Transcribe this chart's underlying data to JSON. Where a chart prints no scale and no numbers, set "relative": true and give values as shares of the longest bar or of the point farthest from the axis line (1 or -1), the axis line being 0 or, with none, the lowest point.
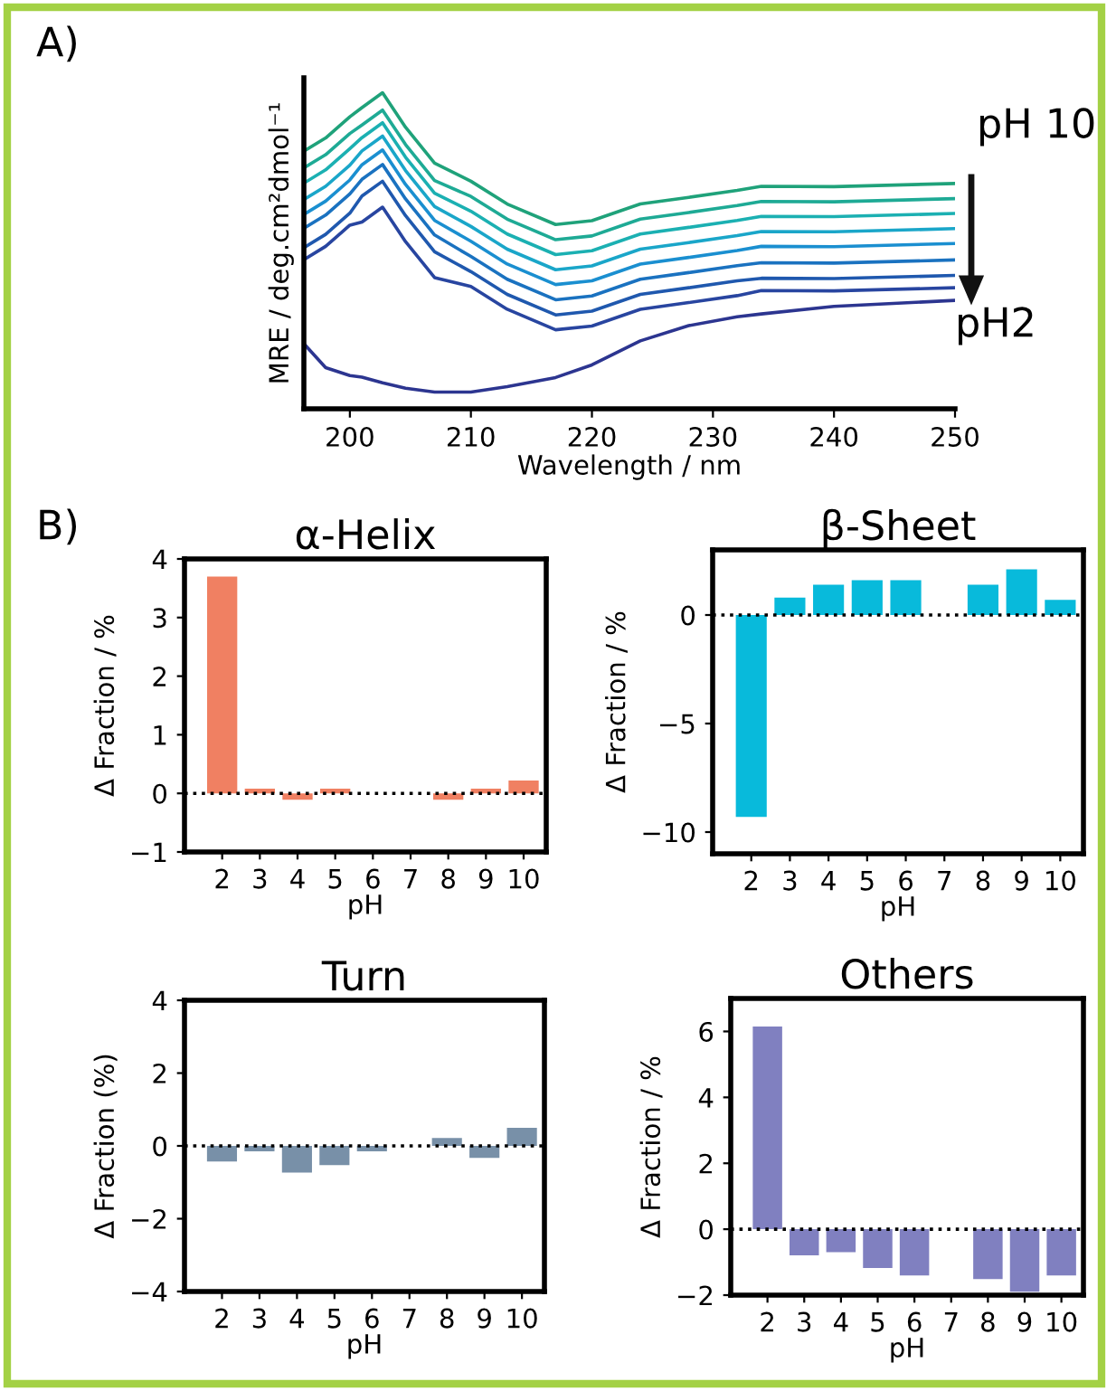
{
  "chart_data": [
    {
      "type": "line",
      "relative": true,
      "xlabel": "Wavelength / nm",
      "ylabel": "MRE / deg.cm²dmol⁻¹",
      "xlim": [
        196.2,
        250
      ],
      "xticks": [
        200,
        210,
        220,
        230,
        240,
        250
      ],
      "annotations": [
        "A)",
        "pH 10",
        "pH2"
      ],
      "x": [
        196.2,
        198,
        200,
        201,
        202.7,
        204.6,
        207,
        210,
        213,
        217,
        220,
        224,
        228,
        232,
        234,
        240,
        250
      ],
      "series": [
        {
          "color": "#1fa27a",
          "values": [
            0.815,
            0.857,
            0.924,
            0.953,
            1.0,
            0.891,
            0.777,
            0.72,
            0.648,
            0.583,
            0.595,
            0.648,
            0.669,
            0.691,
            0.704,
            0.703,
            0.713
          ]
        },
        {
          "color": "#1eaa95",
          "values": [
            0.762,
            0.804,
            0.871,
            0.898,
            0.945,
            0.836,
            0.722,
            0.672,
            0.6,
            0.535,
            0.547,
            0.6,
            0.621,
            0.643,
            0.656,
            0.655,
            0.665
          ]
        },
        {
          "color": "#1bb0b2",
          "values": [
            0.714,
            0.756,
            0.823,
            0.858,
            0.905,
            0.796,
            0.682,
            0.625,
            0.553,
            0.488,
            0.5,
            0.553,
            0.574,
            0.596,
            0.609,
            0.608,
            0.618
          ]
        },
        {
          "color": "#1aa6c9",
          "values": [
            0.662,
            0.704,
            0.771,
            0.816,
            0.863,
            0.754,
            0.64,
            0.577,
            0.505,
            0.44,
            0.452,
            0.505,
            0.526,
            0.548,
            0.561,
            0.56,
            0.57
          ]
        },
        {
          "color": "#1a8fd0",
          "values": [
            0.615,
            0.657,
            0.724,
            0.772,
            0.819,
            0.71,
            0.596,
            0.53,
            0.458,
            0.393,
            0.405,
            0.458,
            0.479,
            0.501,
            0.514,
            0.513,
            0.523
          ]
        },
        {
          "color": "#1a72c0",
          "values": [
            0.571,
            0.613,
            0.68,
            0.726,
            0.773,
            0.664,
            0.55,
            0.482,
            0.41,
            0.345,
            0.357,
            0.41,
            0.431,
            0.453,
            0.462,
            0.461,
            0.471
          ]
        },
        {
          "color": "#1f58ae",
          "values": [
            0.51,
            0.552,
            0.619,
            0.673,
            0.72,
            0.611,
            0.497,
            0.434,
            0.362,
            0.297,
            0.309,
            0.362,
            0.383,
            0.405,
            0.413,
            0.412,
            0.422
          ]
        },
        {
          "color": "#2845a0",
          "values": [
            0.472,
            0.514,
            0.581,
            0.591,
            0.638,
            0.529,
            0.415,
            0.387,
            0.315,
            0.25,
            0.262,
            0.315,
            0.336,
            0.358,
            0.374,
            0.373,
            0.383
          ]
        },
        {
          "color": "#2c3590",
          "values": [
            0.206,
            0.13,
            0.105,
            0.1,
            0.082,
            0.065,
            0.053,
            0.053,
            0.07,
            0.099,
            0.139,
            0.215,
            0.263,
            0.291,
            0.3,
            0.324,
            0.343
          ]
        }
      ]
    },
    {
      "type": "bar",
      "title": "α-Helix",
      "xlabel": "pH",
      "ylabel": "Δ Fraction / %",
      "categories": [
        "2",
        "3",
        "4",
        "5",
        "6",
        "7",
        "8",
        "9",
        "10"
      ],
      "values": [
        3.7,
        0.08,
        -0.11,
        0.08,
        null,
        null,
        -0.11,
        0.08,
        0.22
      ],
      "color": "#f08062",
      "ylim": [
        -1,
        4
      ],
      "yticks": [
        -1,
        0,
        1,
        2,
        3,
        4
      ],
      "ref_lines": [
        {
          "axis": "y",
          "value": 0,
          "line_style": "dotted",
          "color": "#000000"
        }
      ],
      "annotations": [
        "B)"
      ]
    },
    {
      "type": "bar",
      "title": "β-Sheet",
      "xlabel": "pH",
      "ylabel": "Δ Fraction / %",
      "categories": [
        "2",
        "3",
        "4",
        "5",
        "6",
        "7",
        "8",
        "9",
        "10"
      ],
      "values": [
        -9.3,
        0.8,
        1.4,
        1.6,
        1.6,
        null,
        1.4,
        2.1,
        0.7
      ],
      "color": "#08badb",
      "ylim": [
        -11,
        3
      ],
      "yticks": [
        -10,
        -5,
        0
      ],
      "ref_lines": [
        {
          "axis": "y",
          "value": 0,
          "line_style": "dotted",
          "color": "#000000"
        }
      ]
    },
    {
      "type": "bar",
      "title": "Turn",
      "xlabel": "pH",
      "ylabel": "Δ Fraction (%)",
      "categories": [
        "2",
        "3",
        "4",
        "5",
        "6",
        "7",
        "8",
        "9",
        "10"
      ],
      "values": [
        -0.43,
        -0.15,
        -0.73,
        -0.53,
        -0.15,
        null,
        0.22,
        -0.33,
        0.5
      ],
      "color": "#7890a8",
      "ylim": [
        -4,
        4
      ],
      "yticks": [
        -4,
        -2,
        0,
        2,
        4
      ],
      "ref_lines": [
        {
          "axis": "y",
          "value": 0,
          "line_style": "dotted",
          "color": "#000000"
        }
      ]
    },
    {
      "type": "bar",
      "title": "Others",
      "xlabel": "pH",
      "ylabel": "Δ Fraction / %",
      "categories": [
        "2",
        "3",
        "4",
        "5",
        "6",
        "7",
        "8",
        "9",
        "10"
      ],
      "values": [
        6.15,
        -0.79,
        -0.7,
        -1.18,
        -1.4,
        null,
        -1.51,
        -1.9,
        -1.4
      ],
      "color": "#8080c0",
      "ylim": [
        -2,
        7
      ],
      "yticks": [
        -2,
        0,
        2,
        4,
        6
      ],
      "ref_lines": [
        {
          "axis": "y",
          "value": 0,
          "line_style": "dotted",
          "color": "#000000"
        }
      ]
    }
  ]
}
